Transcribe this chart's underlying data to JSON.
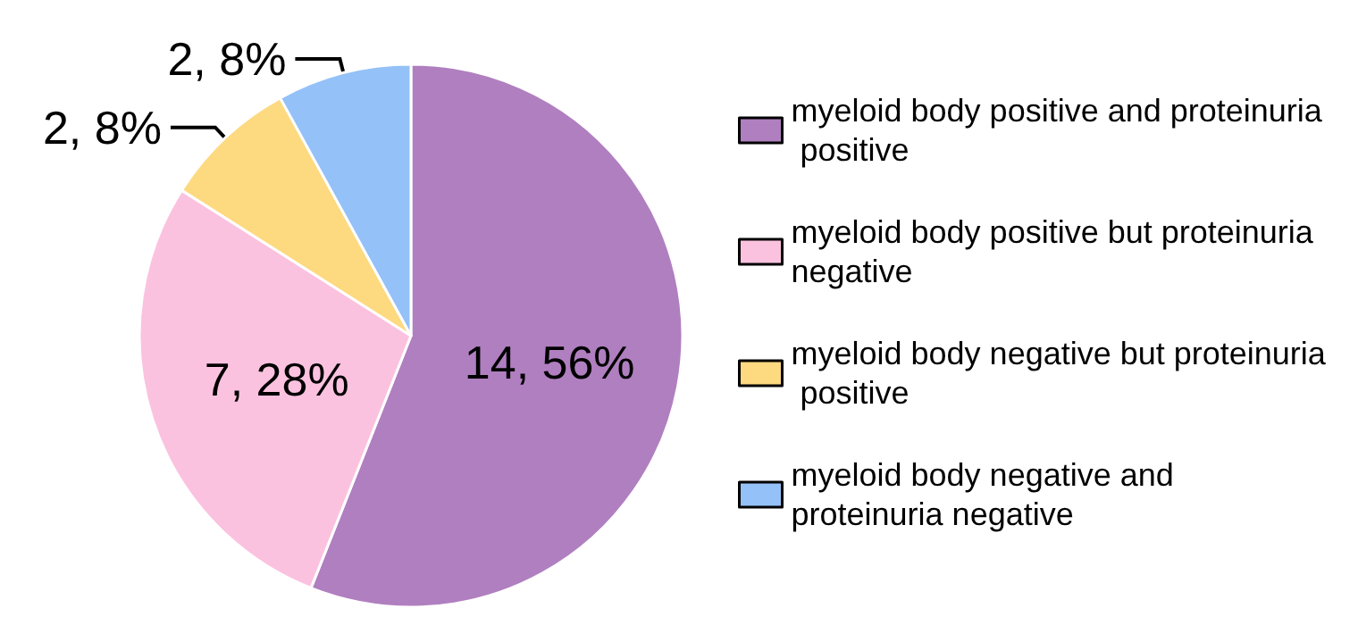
{
  "chart_data": {
    "type": "pie",
    "categories": [
      "myeloid body positive and proteinuria positive",
      "myeloid body positive but proteinuria negative",
      "myeloid body negative but proteinuria positive",
      "myeloid body negative and proteinuria negative"
    ],
    "values": [
      14,
      7,
      2,
      2
    ],
    "value_labels": [
      "14, 56%",
      "7, 28%",
      "2, 8%",
      "2, 8%"
    ],
    "colors": [
      "#b07fc0",
      "#fbc2e0",
      "#fdd980",
      "#94c1f7"
    ],
    "legend": "right"
  }
}
